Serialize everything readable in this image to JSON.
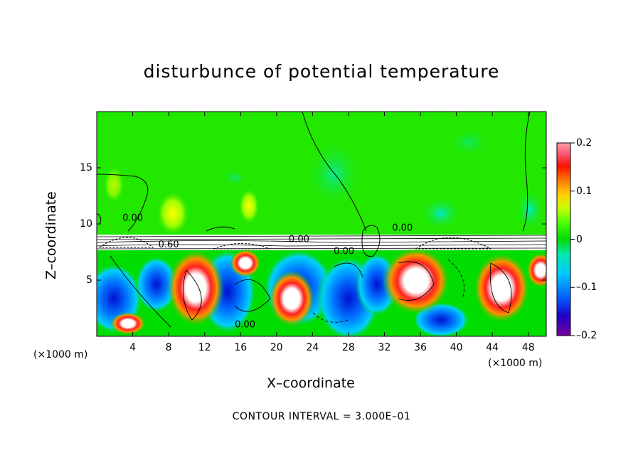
{
  "chart_data": {
    "type": "heatmap",
    "title": "disturbunce of potential temperature",
    "xlabel": "X–coordinate",
    "ylabel": "Z–coordinate",
    "x_unit_left": "(×1000 m)",
    "x_unit_right": "(×1000 m)",
    "footnote": "CONTOUR INTERVAL = 3.000E–01",
    "x_ticks": [
      "4",
      "8",
      "12",
      "16",
      "20",
      "24",
      "28",
      "32",
      "36",
      "40",
      "44",
      "48"
    ],
    "x_tick_values": [
      4,
      8,
      12,
      16,
      20,
      24,
      28,
      32,
      36,
      40,
      44,
      48
    ],
    "xlim": [
      0,
      50
    ],
    "y_ticks": [
      "5",
      "10",
      "15"
    ],
    "y_tick_values": [
      5,
      10,
      15
    ],
    "ylim": [
      0,
      20
    ],
    "colorbar_ticks": [
      "0.2",
      "0.1",
      "0",
      "–0.1",
      "–0.2"
    ],
    "colorbar_values": [
      0.2,
      0.1,
      0,
      -0.1,
      -0.2
    ],
    "colorbar_range": [
      -0.2,
      0.2
    ],
    "contour_labels": [
      {
        "text": "0.00",
        "x": 4.0,
        "z": 10.3
      },
      {
        "text": "0.60",
        "x": 8.0,
        "z": 7.9
      },
      {
        "text": "0.00",
        "x": 22.5,
        "z": 8.4
      },
      {
        "text": "0.00",
        "x": 27.5,
        "z": 7.3
      },
      {
        "text": "0.00",
        "x": 34.0,
        "z": 9.4
      },
      {
        "text": "0.00",
        "x": 16.5,
        "z": 0.8
      }
    ],
    "colors": [
      "#7a00a0",
      "#2000c8",
      "#0060ff",
      "#00c8ff",
      "#00e8b0",
      "#00dd00",
      "#44ff00",
      "#c8ff00",
      "#ffd000",
      "#ff8000",
      "#ff1000",
      "#ff6080",
      "#ffa0a0"
    ]
  }
}
